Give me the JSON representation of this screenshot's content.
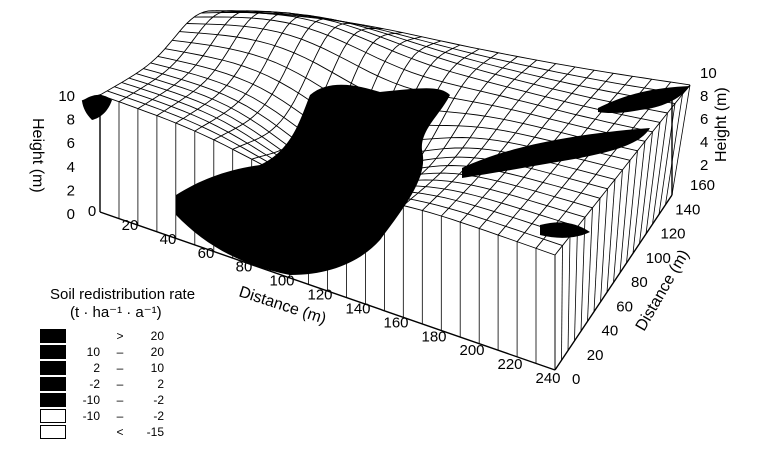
{
  "figure": {
    "axis_front_x": {
      "label": "Distance (m)",
      "ticks": [
        "0",
        "20",
        "40",
        "60",
        "80",
        "100",
        "120",
        "140",
        "160",
        "180",
        "200",
        "220",
        "240"
      ]
    },
    "axis_right_y": {
      "label": "Distance (m)",
      "ticks": [
        "0",
        "20",
        "40",
        "60",
        "80",
        "100",
        "120",
        "140",
        "160"
      ]
    },
    "axis_height_left": {
      "label": "Height (m)",
      "ticks": [
        "0",
        "2",
        "4",
        "6",
        "8",
        "10"
      ]
    },
    "axis_height_right": {
      "label": "Height (m)",
      "ticks": [
        "2",
        "4",
        "6",
        "8",
        "10"
      ]
    }
  },
  "legend": {
    "title": "Soil redistribution rate",
    "units": "(t · ha⁻¹ · a⁻¹)",
    "classes": [
      {
        "lo": "",
        "op": ">",
        "hi": "20",
        "fill": "#000000"
      },
      {
        "lo": "10",
        "op": "–",
        "hi": "20",
        "fill": "#000000"
      },
      {
        "lo": "2",
        "op": "–",
        "hi": "10",
        "fill": "#000000"
      },
      {
        "lo": "-2",
        "op": "–",
        "hi": "2",
        "fill": "#000000"
      },
      {
        "lo": "-10",
        "op": "–",
        "hi": "-2",
        "fill": "#000000"
      },
      {
        "lo": "-10",
        "op": "–",
        "hi": "-2",
        "fill": "#ffffff"
      },
      {
        "lo": "",
        "op": "<",
        "hi": "-15",
        "fill": "#ffffff"
      }
    ]
  }
}
